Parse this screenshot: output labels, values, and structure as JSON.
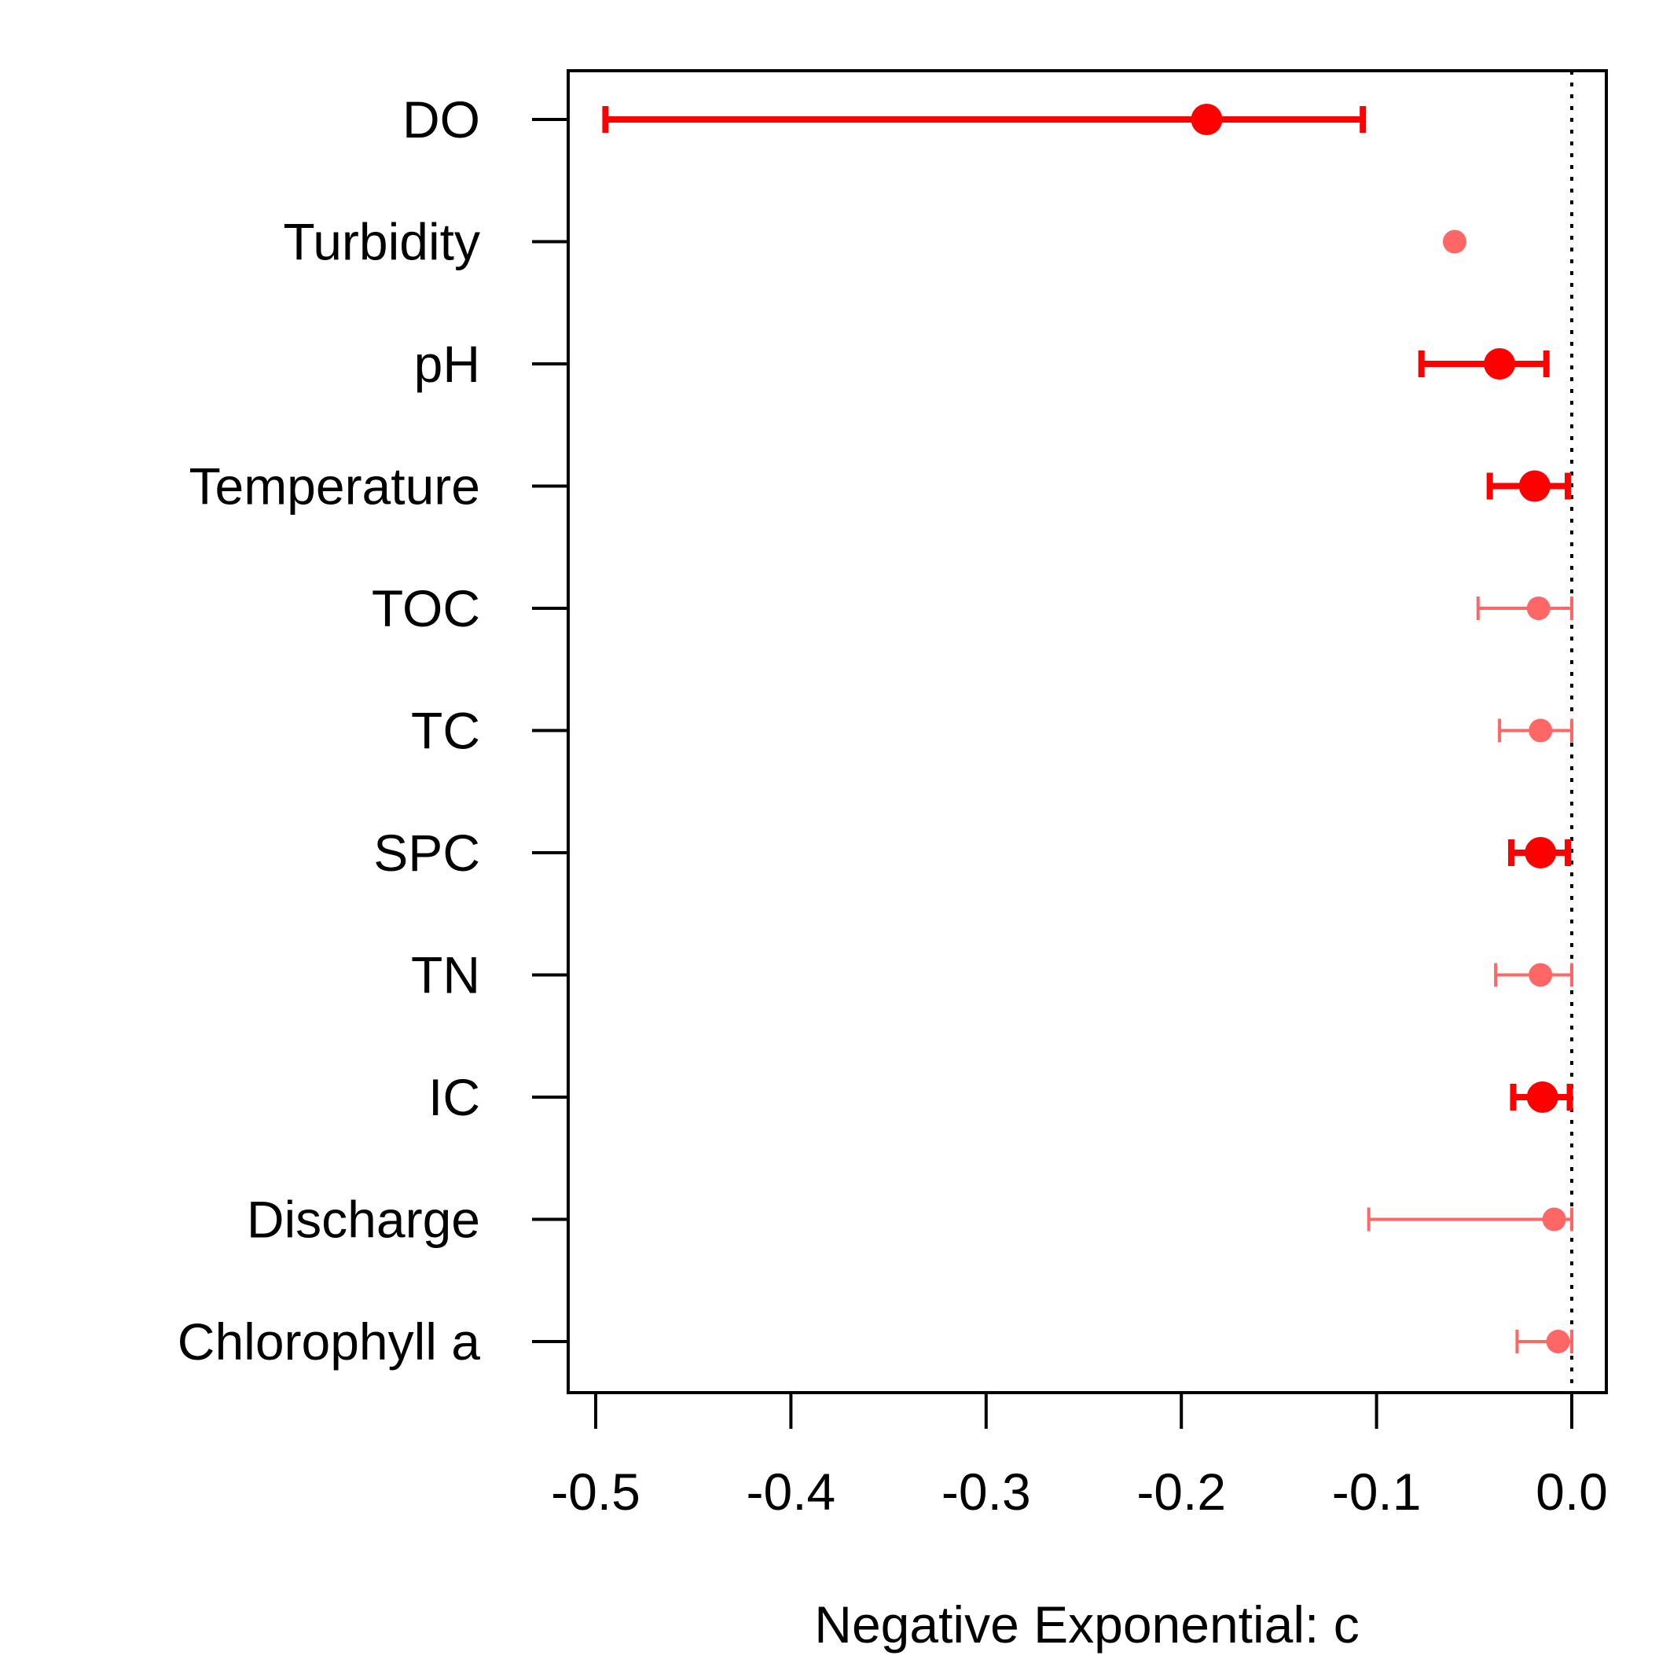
{
  "chart_data": {
    "type": "scatter",
    "subtype": "forest-plot-point-with-interval",
    "title": "",
    "xlabel": "Negative Exponential: c",
    "ylabel": "",
    "xlim": [
      -0.52,
      0.02
    ],
    "xticks": [
      -0.5,
      -0.4,
      -0.3,
      -0.2,
      -0.1,
      0.0
    ],
    "xtick_labels": [
      "-0.5",
      "-0.4",
      "-0.3",
      "-0.2",
      "-0.1",
      "0.0"
    ],
    "reference_line": {
      "x": 0.0,
      "style": "dotted"
    },
    "grid": false,
    "legend": "none",
    "colors": {
      "significant": "#ff0000",
      "nonsignificant": "#ff6666",
      "axis": "#000000"
    },
    "categories": [
      "DO",
      "Turbidity",
      "pH",
      "Temperature",
      "TOC",
      "TC",
      "SPC",
      "TN",
      "IC",
      "Discharge",
      "Chlorophyll a"
    ],
    "points": [
      {
        "label": "DO",
        "estimate": -0.187,
        "lower": -0.495,
        "upper": -0.107,
        "emphasis": "strong"
      },
      {
        "label": "Turbidity",
        "estimate": -0.06,
        "lower": null,
        "upper": null,
        "emphasis": "light"
      },
      {
        "label": "pH",
        "estimate": -0.037,
        "lower": -0.077,
        "upper": -0.013,
        "emphasis": "strong"
      },
      {
        "label": "Temperature",
        "estimate": -0.019,
        "lower": -0.042,
        "upper": -0.002,
        "emphasis": "strong"
      },
      {
        "label": "TOC",
        "estimate": -0.017,
        "lower": -0.048,
        "upper": 0.0,
        "emphasis": "light"
      },
      {
        "label": "TC",
        "estimate": -0.016,
        "lower": -0.037,
        "upper": 0.0,
        "emphasis": "light"
      },
      {
        "label": "SPC",
        "estimate": -0.016,
        "lower": -0.031,
        "upper": -0.002,
        "emphasis": "strong"
      },
      {
        "label": "TN",
        "estimate": -0.016,
        "lower": -0.039,
        "upper": 0.0,
        "emphasis": "light"
      },
      {
        "label": "IC",
        "estimate": -0.015,
        "lower": -0.03,
        "upper": -0.001,
        "emphasis": "strong"
      },
      {
        "label": "Discharge",
        "estimate": -0.009,
        "lower": -0.104,
        "upper": 0.0,
        "emphasis": "light"
      },
      {
        "label": "Chlorophyll a",
        "estimate": -0.007,
        "lower": -0.028,
        "upper": 0.0,
        "emphasis": "light"
      }
    ]
  }
}
